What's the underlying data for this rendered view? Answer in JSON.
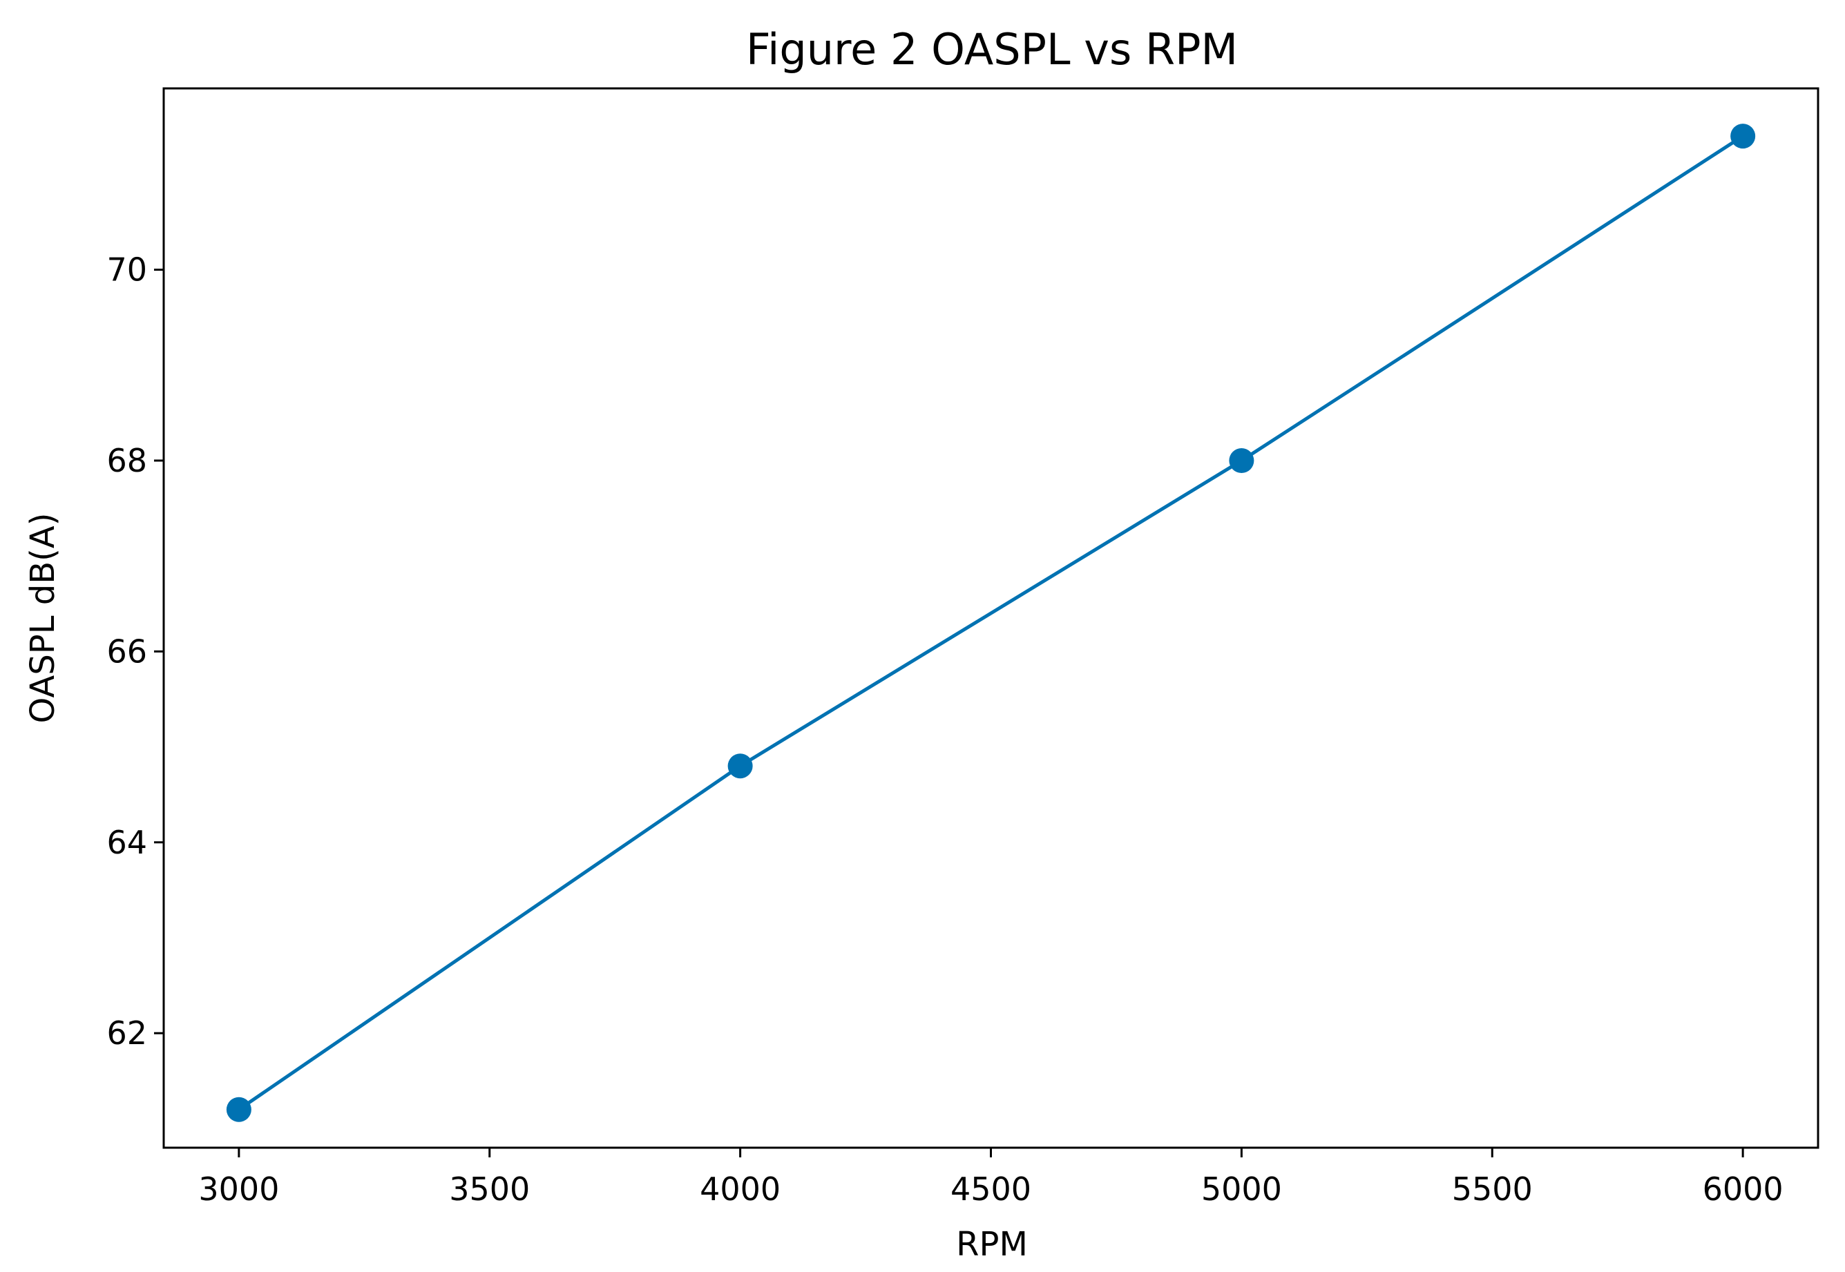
{
  "chart_data": {
    "type": "line",
    "title": "Figure 2 OASPL vs RPM",
    "xlabel": "RPM",
    "ylabel": "OASPL dB(A)",
    "xlim": [
      2850,
      6150
    ],
    "ylim": [
      60.8,
      71.9
    ],
    "xticks": [
      3000,
      3500,
      4000,
      4500,
      5000,
      5500,
      6000
    ],
    "yticks": [
      62,
      64,
      66,
      68,
      70
    ],
    "grid": false,
    "legend": "none",
    "series": [
      {
        "color": "#0072b2",
        "marker": "circle",
        "x": [
          3000,
          4000,
          5000,
          6000
        ],
        "y": [
          61.2,
          64.8,
          68.0,
          71.4
        ]
      }
    ]
  }
}
